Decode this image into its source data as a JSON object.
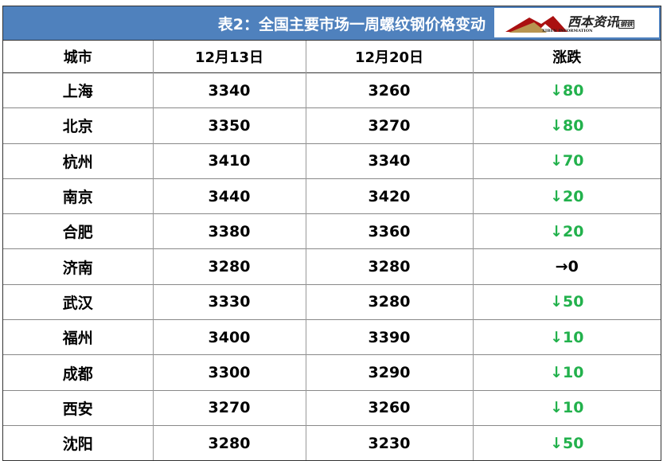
{
  "title": "表2：全国主要市场一周螺纹钢价格变动",
  "logo": {
    "name": "西本资讯",
    "tag": "钢铁",
    "sub": "XIBEN INFORMATION"
  },
  "colors": {
    "header": "#4f81bd",
    "down": "#22b14c"
  },
  "columns": [
    "城市",
    "12月13日",
    "12月20日",
    "涨跌"
  ],
  "rows": [
    {
      "city": "上海",
      "d1": "3340",
      "d2": "3260",
      "change": "↓80",
      "trend": "down"
    },
    {
      "city": "北京",
      "d1": "3350",
      "d2": "3270",
      "change": "↓80",
      "trend": "down"
    },
    {
      "city": "杭州",
      "d1": "3410",
      "d2": "3340",
      "change": "↓70",
      "trend": "down"
    },
    {
      "city": "南京",
      "d1": "3440",
      "d2": "3420",
      "change": "↓20",
      "trend": "down"
    },
    {
      "city": "合肥",
      "d1": "3380",
      "d2": "3360",
      "change": "↓20",
      "trend": "down"
    },
    {
      "city": "济南",
      "d1": "3280",
      "d2": "3280",
      "change": "→0",
      "trend": "flat"
    },
    {
      "city": "武汉",
      "d1": "3330",
      "d2": "3280",
      "change": "↓50",
      "trend": "down"
    },
    {
      "city": "福州",
      "d1": "3400",
      "d2": "3390",
      "change": "↓10",
      "trend": "down"
    },
    {
      "city": "成都",
      "d1": "3300",
      "d2": "3290",
      "change": "↓10",
      "trend": "down"
    },
    {
      "city": "西安",
      "d1": "3270",
      "d2": "3260",
      "change": "↓10",
      "trend": "down"
    },
    {
      "city": "沈阳",
      "d1": "3280",
      "d2": "3230",
      "change": "↓50",
      "trend": "down"
    }
  ]
}
